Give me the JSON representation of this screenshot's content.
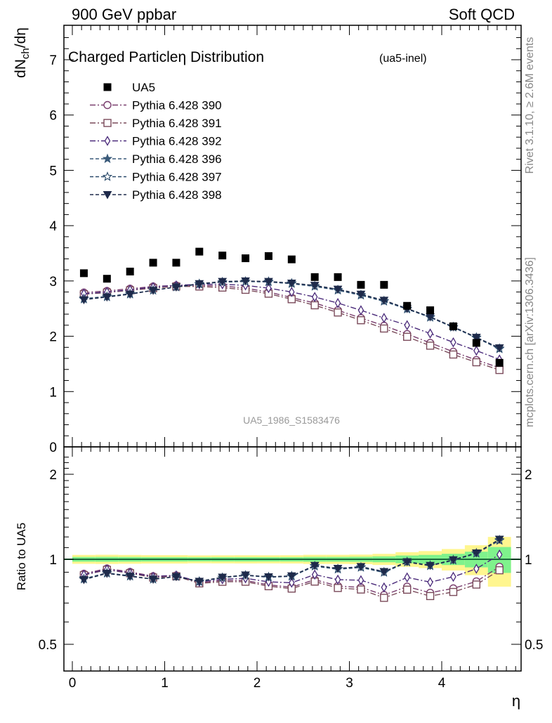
{
  "header": {
    "left": "900 GeV ppbar",
    "right": "Soft QCD"
  },
  "side_labels": {
    "rivet": "Rivet 3.1.10, ≥ 2.6M events",
    "mcplots": "mcplots.cern.ch [arXiv:1306.3436]"
  },
  "chart_data": {
    "type": "scatter",
    "title": "Charged Particleη Distribution",
    "subtitle": "(ua5-inel)",
    "watermark": "UA5_1986_S1583476",
    "xlabel": "η",
    "ylabel": "dN_ch/dη",
    "ratio_ylabel": "Ratio to UA5",
    "xlim": [
      -0.1,
      4.85
    ],
    "ylim": [
      0,
      7.6
    ],
    "ratio_ylim": [
      0.4,
      2.5
    ],
    "ratio_scale": "log",
    "x_ticks": [
      "0",
      "1",
      "2",
      "3",
      "4"
    ],
    "y_ticks": [
      "0",
      "1",
      "2",
      "3",
      "4",
      "5",
      "6",
      "7"
    ],
    "ratio_ticks": [
      "0.5",
      "1",
      "2"
    ],
    "legend_position": "top-left",
    "x": [
      0.125,
      0.375,
      0.625,
      0.875,
      1.125,
      1.375,
      1.625,
      1.875,
      2.125,
      2.375,
      2.625,
      2.875,
      3.125,
      3.375,
      3.625,
      3.875,
      4.125,
      4.375,
      4.625
    ],
    "data": {
      "name": "UA5",
      "values": [
        3.14,
        3.04,
        3.17,
        3.33,
        3.33,
        3.53,
        3.46,
        3.41,
        3.45,
        3.39,
        3.07,
        3.07,
        2.93,
        2.93,
        2.55,
        2.47,
        2.18,
        1.88,
        1.52
      ],
      "band_halfwidth": [
        0.06,
        0.06,
        0.06,
        0.06,
        0.06,
        0.06,
        0.06,
        0.06,
        0.06,
        0.06,
        0.06,
        0.06,
        0.06,
        0.07,
        0.08,
        0.09,
        0.1,
        0.12,
        0.16
      ],
      "color": "#000000"
    },
    "series": [
      {
        "name": "Pythia 6.428 390",
        "marker": "circle",
        "dash": "8,3,2,3",
        "color": "#7a3e6e",
        "values": [
          2.79,
          2.82,
          2.86,
          2.9,
          2.92,
          2.92,
          2.91,
          2.87,
          2.8,
          2.7,
          2.6,
          2.47,
          2.33,
          2.19,
          2.04,
          1.88,
          1.72,
          1.57,
          1.43
        ]
      },
      {
        "name": "Pythia 6.428 391",
        "marker": "square",
        "dash": "8,3,2,3",
        "color": "#7a4a5a",
        "values": [
          2.76,
          2.79,
          2.83,
          2.87,
          2.9,
          2.9,
          2.88,
          2.84,
          2.77,
          2.67,
          2.56,
          2.43,
          2.29,
          2.14,
          1.99,
          1.83,
          1.67,
          1.53,
          1.39
        ]
      },
      {
        "name": "Pythia 6.428 392",
        "marker": "diamond",
        "dash": "8,3,2,3",
        "color": "#4a2a7a",
        "values": [
          2.77,
          2.8,
          2.84,
          2.89,
          2.92,
          2.94,
          2.94,
          2.92,
          2.87,
          2.8,
          2.71,
          2.6,
          2.47,
          2.33,
          2.2,
          2.05,
          1.89,
          1.74,
          1.58
        ]
      },
      {
        "name": "Pythia 6.428 396",
        "marker": "star",
        "dash": "5,3",
        "color": "#3a5a7a",
        "values": [
          2.67,
          2.71,
          2.76,
          2.83,
          2.89,
          2.94,
          2.98,
          2.99,
          2.98,
          2.95,
          2.9,
          2.83,
          2.74,
          2.63,
          2.49,
          2.34,
          2.16,
          1.97,
          1.77
        ]
      },
      {
        "name": "Pythia 6.428 397",
        "marker": "star-open",
        "dash": "5,3",
        "color": "#2a4a6a",
        "values": [
          2.68,
          2.72,
          2.77,
          2.83,
          2.89,
          2.95,
          2.98,
          2.99,
          2.99,
          2.96,
          2.91,
          2.84,
          2.75,
          2.64,
          2.5,
          2.35,
          2.17,
          1.98,
          1.78
        ]
      },
      {
        "name": "Pythia 6.428 398",
        "marker": "triangle-down",
        "dash": "5,3",
        "color": "#1e2a4a",
        "values": [
          2.66,
          2.71,
          2.76,
          2.83,
          2.89,
          2.95,
          2.99,
          3.0,
          2.99,
          2.96,
          2.92,
          2.85,
          2.76,
          2.65,
          2.5,
          2.35,
          2.17,
          1.98,
          1.79
        ]
      }
    ],
    "colors": {
      "band_yellow": "#fff68f",
      "band_green": "#7ff28c",
      "ratio_line": "#1a6b3a"
    }
  }
}
